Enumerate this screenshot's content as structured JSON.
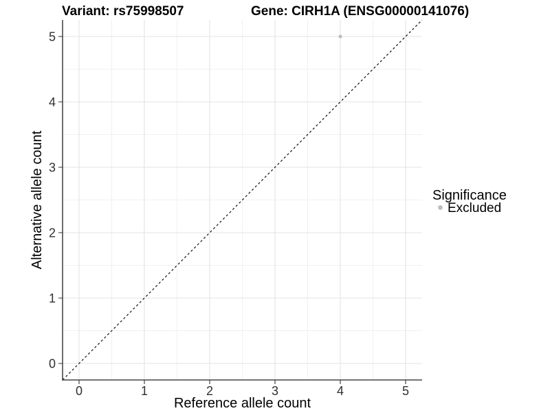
{
  "chart_data": {
    "type": "scatter",
    "title_variant": "Variant: rs75998507",
    "title_gene": "Gene: CIRH1A (ENSG00000141076)",
    "xlabel": "Reference allele count",
    "ylabel": "Alternative allele count",
    "x_ticks": [
      "0",
      "1",
      "2",
      "3",
      "4",
      "5"
    ],
    "y_ticks": [
      "0",
      "1",
      "2",
      "3",
      "4",
      "5"
    ],
    "xlim": [
      -0.25,
      5.25
    ],
    "ylim": [
      -0.25,
      5.25
    ],
    "grid": "major and minor gridlines, white background",
    "points": [
      {
        "x": 4,
        "y": 5,
        "series": "Excluded"
      }
    ],
    "reference_line": {
      "type": "identity y=x",
      "style": "dashed",
      "color": "#111111"
    },
    "legend": {
      "title": "Significance",
      "position": "right",
      "items": [
        {
          "label": "Excluded",
          "color": "#bdbdbd"
        }
      ]
    },
    "colors": {
      "point": "#bdbdbd",
      "grid_major": "#e3e3e3",
      "grid_minor": "#f0f0f0",
      "axis_line": "#474747",
      "background": "#ffffff"
    }
  }
}
